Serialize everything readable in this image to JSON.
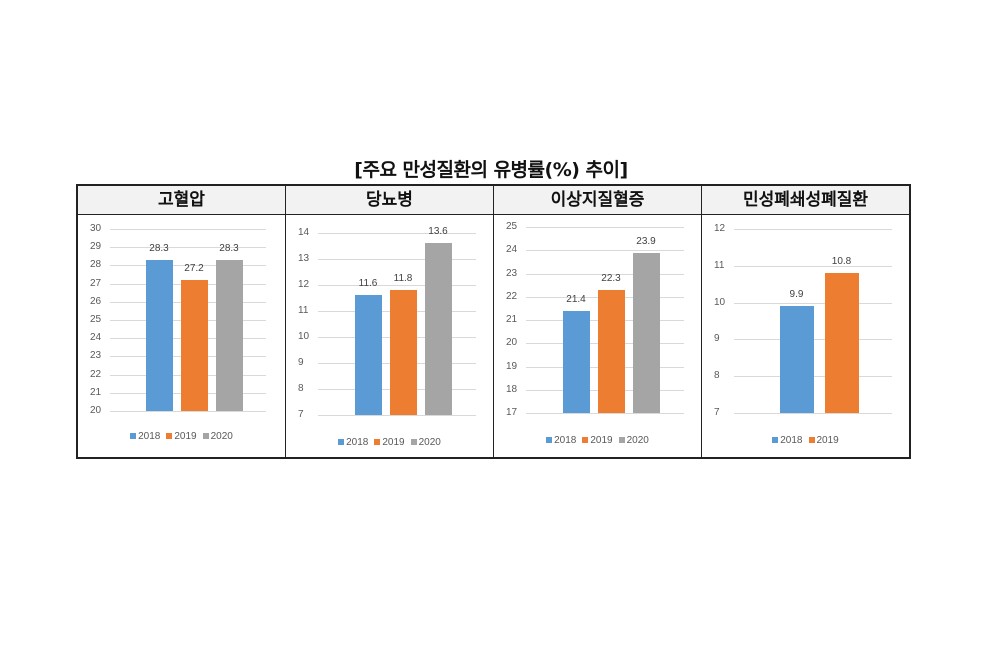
{
  "title": "[주요 만성질환의 유병률(%) 추이]",
  "colors": {
    "2018": "#5b9bd5",
    "2019": "#ed7d31",
    "2020": "#a5a5a5"
  },
  "chart_data": [
    {
      "type": "bar",
      "title": "고혈압",
      "categories": [
        "2018",
        "2019",
        "2020"
      ],
      "values": [
        28.3,
        27.2,
        28.3
      ],
      "ylim": [
        20,
        30
      ],
      "yticks": [
        20,
        21,
        22,
        23,
        24,
        25,
        26,
        27,
        28,
        29,
        30
      ],
      "legend": [
        "2018",
        "2019",
        "2020"
      ],
      "legend_position": "bottom",
      "grid": true
    },
    {
      "type": "bar",
      "title": "당뇨병",
      "categories": [
        "2018",
        "2019",
        "2020"
      ],
      "values": [
        11.6,
        11.8,
        13.6
      ],
      "ylim": [
        7,
        14
      ],
      "yticks": [
        7,
        8,
        9,
        10,
        11,
        12,
        13,
        14
      ],
      "legend": [
        "2018",
        "2019",
        "2020"
      ],
      "legend_position": "bottom",
      "grid": true
    },
    {
      "type": "bar",
      "title": "이상지질혈증",
      "categories": [
        "2018",
        "2019",
        "2020"
      ],
      "values": [
        21.4,
        22.3,
        23.9
      ],
      "ylim": [
        17,
        25
      ],
      "yticks": [
        17,
        18,
        19,
        20,
        21,
        22,
        23,
        24,
        25
      ],
      "legend": [
        "2018",
        "2019",
        "2020"
      ],
      "legend_position": "bottom",
      "grid": true
    },
    {
      "type": "bar",
      "title": "민성폐쇄성폐질환",
      "categories": [
        "2018",
        "2019"
      ],
      "values": [
        9.9,
        10.8
      ],
      "ylim": [
        7,
        12
      ],
      "yticks": [
        7,
        8,
        9,
        10,
        11,
        12
      ],
      "legend": [
        "2018",
        "2019"
      ],
      "legend_position": "bottom",
      "grid": true
    }
  ]
}
